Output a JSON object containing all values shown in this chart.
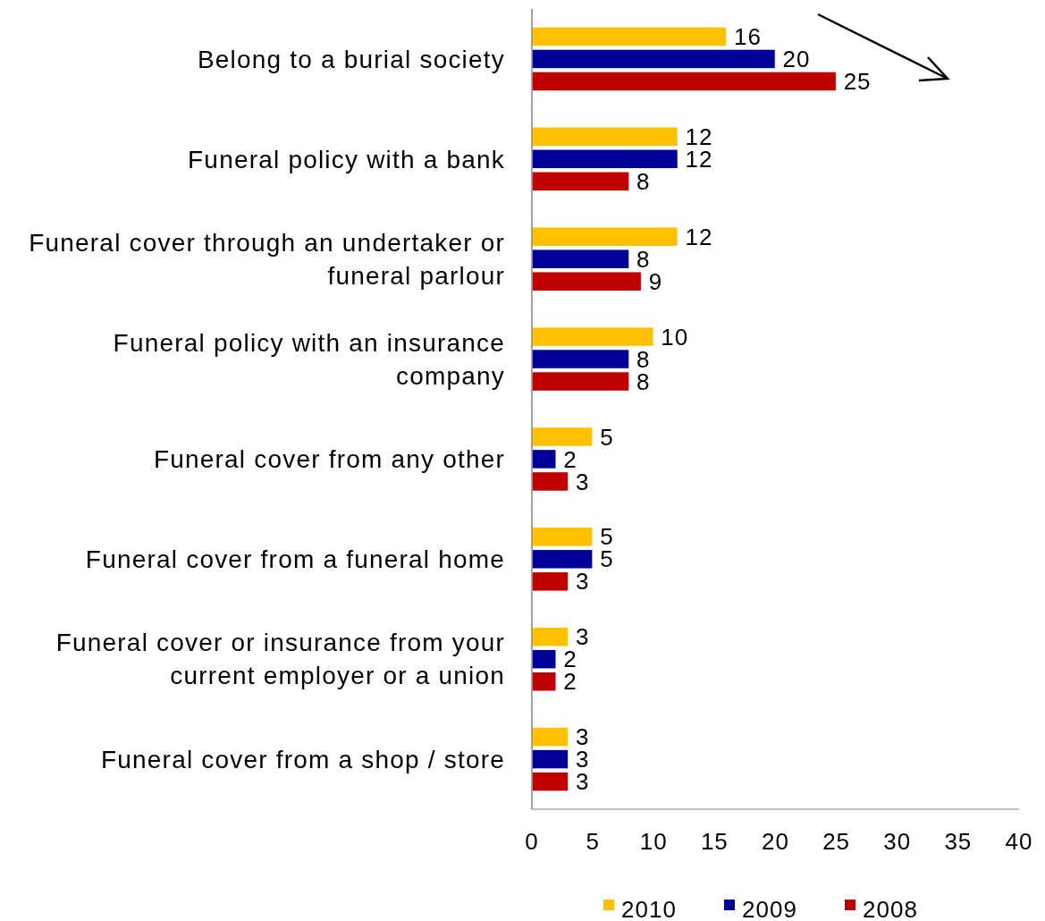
{
  "chart_data": {
    "type": "bar",
    "orientation": "horizontal",
    "categories": [
      "Belong to a burial society",
      "Funeral policy with a bank",
      "Funeral cover through an undertaker or funeral parlour",
      "Funeral policy with an insurance company",
      "Funeral cover from any other",
      "Funeral cover from a funeral home",
      "Funeral cover or insurance from your current employer or a union",
      "Funeral cover from a shop / store"
    ],
    "series": [
      {
        "name": "2010",
        "color": "#ffc000",
        "values": [
          16,
          12,
          12,
          10,
          5,
          5,
          3,
          3
        ]
      },
      {
        "name": "2009",
        "color": "#000099",
        "values": [
          20,
          12,
          8,
          8,
          2,
          5,
          2,
          3
        ]
      },
      {
        "name": "2008",
        "color": "#c00000",
        "values": [
          25,
          8,
          9,
          8,
          3,
          3,
          2,
          3
        ]
      }
    ],
    "xlim": [
      0,
      40
    ],
    "xticks": [
      0,
      5,
      10,
      15,
      20,
      25,
      30,
      35,
      40
    ],
    "data_labels": true,
    "grid": false,
    "legend": "bottom"
  }
}
